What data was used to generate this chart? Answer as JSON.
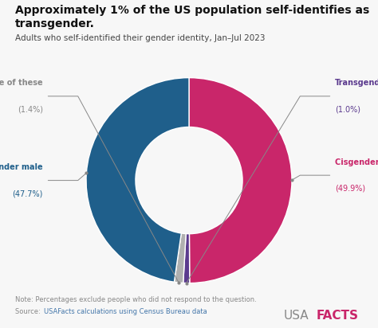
{
  "title_line1": "Approximately 1% of the US population self-identifies as",
  "title_line2": "transgender.",
  "subtitle": "Adults who self-identified their gender identity, Jan–Jul 2023",
  "slices": [
    49.9,
    1.0,
    1.4,
    47.7
  ],
  "labels": [
    "Cisgender female",
    "Transgender",
    "None of these",
    "Cisgender male"
  ],
  "percentages": [
    "(49.9%)",
    "(1.0%)",
    "(1.4%)",
    "(47.7%)"
  ],
  "colors": [
    "#c9266a",
    "#5b3a8e",
    "#b0b0b0",
    "#1f5f8b"
  ],
  "startangle": 90,
  "note": "Note: Percentages exclude people who did not respond to the question.",
  "source_prefix": "Source: ",
  "source_link": "USAFacts calculations using Census Bureau data",
  "bg_color": "#f7f7f7",
  "label_colors": [
    "#c9266a",
    "#5b3a8e",
    "#888888",
    "#1f5f8b"
  ],
  "line_color": "#888888",
  "title_color": "#111111",
  "subtitle_color": "#444444",
  "note_color": "#888888",
  "usa_color": "#888888",
  "facts_color": "#c9266a"
}
